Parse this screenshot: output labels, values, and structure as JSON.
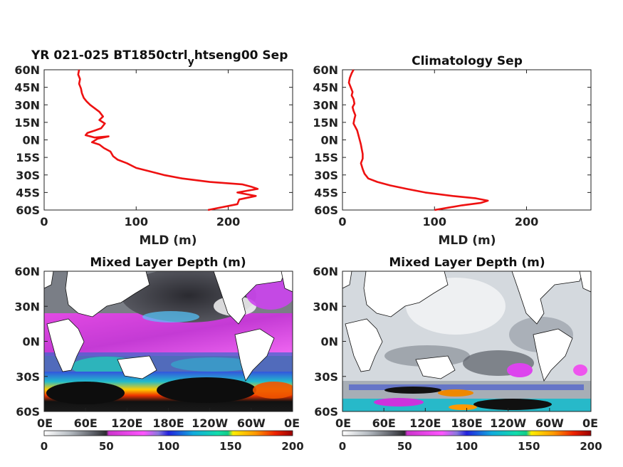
{
  "chart_data": [
    {
      "type": "line",
      "title_main": "YR 021-025 BT1850ctrl",
      "title_sub": "y",
      "title_tail": "htseng00 Sep",
      "xlabel": "MLD (m)",
      "xlim": [
        0,
        270
      ],
      "ylim": [
        -60,
        60
      ],
      "x_ticks": [
        "0",
        "100",
        "200"
      ],
      "x_tick_values": [
        0,
        100,
        200
      ],
      "y_ticks": [
        "60N",
        "45N",
        "30N",
        "15N",
        "0N",
        "15S",
        "30S",
        "45S",
        "60S"
      ],
      "y_tick_values": [
        60,
        45,
        30,
        15,
        0,
        -15,
        -30,
        -45,
        -60
      ],
      "color": "#ee1111",
      "series": [
        {
          "x": [
            38,
            37,
            39,
            38,
            40,
            41,
            43,
            46,
            50,
            55,
            60,
            64,
            60,
            66,
            62,
            55,
            47,
            45,
            55,
            70,
            58,
            52,
            60,
            65,
            72,
            75,
            80,
            90,
            100,
            115,
            130,
            150,
            180,
            215,
            225,
            232,
            210,
            230,
            212,
            210,
            178
          ],
          "y": [
            60,
            56,
            52,
            48,
            44,
            40,
            36,
            33,
            30,
            27,
            24,
            20,
            17,
            14,
            10,
            8,
            6,
            4,
            2,
            3,
            1,
            -2,
            -4,
            -7,
            -10,
            -14,
            -17,
            -20,
            -24,
            -27,
            -30,
            -33,
            -36,
            -38,
            -40,
            -42,
            -45,
            -48,
            -51,
            -55,
            -60
          ]
        }
      ]
    },
    {
      "type": "line",
      "title": "Climatology Sep",
      "xlabel": "MLD (m)",
      "xlim": [
        0,
        270
      ],
      "ylim": [
        -60,
        60
      ],
      "x_ticks": [
        "0",
        "100",
        "200"
      ],
      "x_tick_values": [
        0,
        100,
        200
      ],
      "y_ticks": [
        "60N",
        "45N",
        "30N",
        "15N",
        "0N",
        "15S",
        "30S",
        "45S",
        "60S"
      ],
      "y_tick_values": [
        60,
        45,
        30,
        15,
        0,
        -15,
        -30,
        -45,
        -60
      ],
      "color": "#ee1111",
      "series": [
        {
          "x": [
            12,
            10,
            8,
            7,
            9,
            11,
            10,
            12,
            13,
            11,
            12,
            14,
            13,
            12,
            14,
            16,
            17,
            18,
            19,
            20,
            21,
            22,
            22,
            20,
            22,
            24,
            28,
            38,
            52,
            70,
            90,
            120,
            145,
            158,
            150,
            130,
            115,
            100
          ],
          "y": [
            60,
            57,
            53,
            49,
            45,
            41,
            38,
            35,
            31,
            28,
            25,
            21,
            18,
            14,
            11,
            8,
            5,
            2,
            -1,
            -4,
            -8,
            -12,
            -16,
            -20,
            -25,
            -29,
            -33,
            -36,
            -39,
            -42,
            -45,
            -48,
            -50,
            -52,
            -54,
            -56,
            -58,
            -60
          ]
        }
      ]
    },
    {
      "type": "heatmap",
      "title": "Mixed Layer Depth (m)",
      "x_ticks": [
        "0E",
        "60E",
        "120E",
        "180E",
        "120W",
        "60W",
        "0E"
      ],
      "y_ticks": [
        "60N",
        "30N",
        "0N",
        "30S",
        "60S"
      ],
      "y_tick_values": [
        60,
        30,
        0,
        -30,
        -60
      ],
      "colorbar_ticks": [
        "0",
        "50",
        "100",
        "150",
        "200"
      ],
      "colorbar_range": [
        0,
        200
      ]
    },
    {
      "type": "heatmap",
      "title": "Mixed Layer Depth (m)",
      "x_ticks": [
        "0E",
        "60E",
        "120E",
        "180E",
        "120W",
        "60W",
        "0E"
      ],
      "y_ticks": [
        "60N",
        "30N",
        "0N",
        "30S",
        "60S"
      ],
      "y_tick_values": [
        60,
        30,
        0,
        -30,
        -60
      ],
      "colorbar_ticks": [
        "0",
        "50",
        "100",
        "150",
        "200"
      ],
      "colorbar_range": [
        0,
        200
      ]
    }
  ],
  "colormap": {
    "stops": [
      [
        "#ffffff",
        0.0
      ],
      [
        "#b8bec4",
        0.1
      ],
      [
        "#5b5e66",
        0.2
      ],
      [
        "#2c2c30",
        0.25
      ],
      [
        "#cc33cc",
        0.26
      ],
      [
        "#ff55ff",
        0.4
      ],
      [
        "#8877dd",
        0.46
      ],
      [
        "#2222dd",
        0.5
      ],
      [
        "#11aadd",
        0.6
      ],
      [
        "#11ddaa",
        0.7
      ],
      [
        "#11cc88",
        0.74
      ],
      [
        "#ffee00",
        0.76
      ],
      [
        "#ff9900",
        0.85
      ],
      [
        "#ee2200",
        0.93
      ],
      [
        "#990000",
        1.0
      ]
    ]
  }
}
